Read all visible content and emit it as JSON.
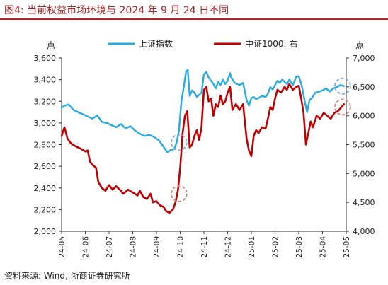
{
  "figure": {
    "title": "图4:   当前权益市场环境与 2024 年 9 月 24 日不同",
    "source": "资料来源:  Wind,  浙商证券研究所"
  },
  "chart_data": {
    "type": "line",
    "left_unit": "点",
    "right_unit": "点",
    "x_tick_labels": [
      "24-05",
      "24-06",
      "24-07",
      "24-08",
      "24-09",
      "24-10",
      "24-11",
      "24-12",
      "25-01",
      "25-02",
      "25-03",
      "25-04",
      "25-05"
    ],
    "y_left": {
      "min": 2000,
      "max": 3600,
      "ticks": [
        2000,
        2200,
        2400,
        2600,
        2800,
        3000,
        3200,
        3400,
        3600
      ],
      "tick_labels": [
        "2,000",
        "2,200",
        "2,400",
        "2,600",
        "2,800",
        "3,000",
        "3,200",
        "3,400",
        "3,600"
      ]
    },
    "y_right": {
      "min": 4000,
      "max": 7000,
      "ticks": [
        4000,
        4500,
        5000,
        5500,
        6000,
        6500,
        7000
      ],
      "tick_labels": [
        "4,000",
        "4,500",
        "5,000",
        "5,500",
        "6,000",
        "6,500",
        "7,000"
      ]
    },
    "legend_position": "top",
    "series": [
      {
        "name": "上证指数",
        "axis": "left",
        "color": "#29abe2",
        "points": [
          [
            0.0,
            3140
          ],
          [
            0.12,
            3160
          ],
          [
            0.3,
            3170
          ],
          [
            0.5,
            3120
          ],
          [
            0.7,
            3100
          ],
          [
            0.9,
            3080
          ],
          [
            1.1,
            3060
          ],
          [
            1.3,
            3040
          ],
          [
            1.5,
            3070
          ],
          [
            1.7,
            3010
          ],
          [
            1.9,
            3000
          ],
          [
            2.1,
            2980
          ],
          [
            2.3,
            2960
          ],
          [
            2.5,
            2990
          ],
          [
            2.7,
            2950
          ],
          [
            2.9,
            2970
          ],
          [
            3.1,
            2930
          ],
          [
            3.3,
            2900
          ],
          [
            3.5,
            2880
          ],
          [
            3.7,
            2890
          ],
          [
            3.9,
            2870
          ],
          [
            4.1,
            2840
          ],
          [
            4.3,
            2780
          ],
          [
            4.45,
            2730
          ],
          [
            4.6,
            2750
          ],
          [
            4.75,
            2760
          ],
          [
            4.85,
            2820
          ],
          [
            4.95,
            2930
          ],
          [
            5.05,
            3200
          ],
          [
            5.15,
            3330
          ],
          [
            5.25,
            3480
          ],
          [
            5.32,
            3490
          ],
          [
            5.4,
            3250
          ],
          [
            5.5,
            3300
          ],
          [
            5.6,
            3280
          ],
          [
            5.7,
            3240
          ],
          [
            5.8,
            3260
          ],
          [
            5.9,
            3280
          ],
          [
            6.0,
            3450
          ],
          [
            6.1,
            3470
          ],
          [
            6.2,
            3420
          ],
          [
            6.3,
            3390
          ],
          [
            6.4,
            3360
          ],
          [
            6.5,
            3320
          ],
          [
            6.6,
            3380
          ],
          [
            6.7,
            3350
          ],
          [
            6.8,
            3400
          ],
          [
            6.9,
            3360
          ],
          [
            7.0,
            3390
          ],
          [
            7.1,
            3460
          ],
          [
            7.15,
            3420
          ],
          [
            7.3,
            3370
          ],
          [
            7.5,
            3350
          ],
          [
            7.65,
            3370
          ],
          [
            7.8,
            3210
          ],
          [
            7.9,
            3160
          ],
          [
            8.0,
            3230
          ],
          [
            8.1,
            3240
          ],
          [
            8.2,
            3220
          ],
          [
            8.3,
            3230
          ],
          [
            8.45,
            3250
          ],
          [
            8.6,
            3240
          ],
          [
            8.7,
            3270
          ],
          [
            8.8,
            3330
          ],
          [
            8.9,
            3310
          ],
          [
            9.0,
            3350
          ],
          [
            9.1,
            3390
          ],
          [
            9.2,
            3370
          ],
          [
            9.3,
            3400
          ],
          [
            9.4,
            3380
          ],
          [
            9.5,
            3360
          ],
          [
            9.6,
            3400
          ],
          [
            9.75,
            3350
          ],
          [
            9.9,
            3430
          ],
          [
            10.0,
            3430
          ],
          [
            10.1,
            3360
          ],
          [
            10.15,
            3320
          ],
          [
            10.25,
            3200
          ],
          [
            10.35,
            3100
          ],
          [
            10.45,
            3210
          ],
          [
            10.55,
            3230
          ],
          [
            10.7,
            3280
          ],
          [
            10.85,
            3290
          ],
          [
            11.0,
            3300
          ],
          [
            11.15,
            3320
          ],
          [
            11.3,
            3290
          ],
          [
            11.45,
            3320
          ],
          [
            11.6,
            3330
          ],
          [
            11.75,
            3350
          ],
          [
            11.9,
            3340
          ]
        ]
      },
      {
        "name": "中证1000:  右",
        "axis": "right",
        "color": "#c00000",
        "points": [
          [
            0.0,
            5650
          ],
          [
            0.12,
            5800
          ],
          [
            0.25,
            5600
          ],
          [
            0.4,
            5520
          ],
          [
            0.55,
            5480
          ],
          [
            0.7,
            5450
          ],
          [
            0.85,
            5420
          ],
          [
            1.0,
            5380
          ],
          [
            1.1,
            5400
          ],
          [
            1.2,
            5200
          ],
          [
            1.3,
            5150
          ],
          [
            1.45,
            5100
          ],
          [
            1.55,
            4850
          ],
          [
            1.7,
            4750
          ],
          [
            1.85,
            4700
          ],
          [
            2.0,
            4800
          ],
          [
            2.15,
            4720
          ],
          [
            2.3,
            4780
          ],
          [
            2.5,
            4700
          ],
          [
            2.6,
            4650
          ],
          [
            2.8,
            4720
          ],
          [
            3.0,
            4670
          ],
          [
            3.2,
            4620
          ],
          [
            3.3,
            4700
          ],
          [
            3.45,
            4590
          ],
          [
            3.6,
            4560
          ],
          [
            3.75,
            4650
          ],
          [
            3.85,
            4500
          ],
          [
            4.0,
            4520
          ],
          [
            4.15,
            4450
          ],
          [
            4.3,
            4420
          ],
          [
            4.4,
            4350
          ],
          [
            4.55,
            4320
          ],
          [
            4.7,
            4380
          ],
          [
            4.8,
            4500
          ],
          [
            4.9,
            4700
          ],
          [
            5.0,
            5100
          ],
          [
            5.1,
            5700
          ],
          [
            5.2,
            6000
          ],
          [
            5.3,
            6080
          ],
          [
            5.4,
            5450
          ],
          [
            5.5,
            5500
          ],
          [
            5.6,
            5650
          ],
          [
            5.7,
            5750
          ],
          [
            5.8,
            5580
          ],
          [
            5.9,
            5800
          ],
          [
            6.0,
            6450
          ],
          [
            6.1,
            6500
          ],
          [
            6.2,
            6250
          ],
          [
            6.3,
            6300
          ],
          [
            6.4,
            6000
          ],
          [
            6.5,
            6200
          ],
          [
            6.6,
            6150
          ],
          [
            6.7,
            6350
          ],
          [
            6.8,
            6200
          ],
          [
            6.9,
            6250
          ],
          [
            7.0,
            6400
          ],
          [
            7.1,
            6500
          ],
          [
            7.2,
            6100
          ],
          [
            7.35,
            6200
          ],
          [
            7.5,
            6100
          ],
          [
            7.65,
            6200
          ],
          [
            7.8,
            5600
          ],
          [
            7.9,
            5400
          ],
          [
            8.0,
            5300
          ],
          [
            8.1,
            5650
          ],
          [
            8.2,
            5750
          ],
          [
            8.3,
            5700
          ],
          [
            8.45,
            5800
          ],
          [
            8.6,
            5780
          ],
          [
            8.7,
            5950
          ],
          [
            8.8,
            6150
          ],
          [
            8.9,
            6100
          ],
          [
            9.0,
            6300
          ],
          [
            9.1,
            6450
          ],
          [
            9.25,
            6400
          ],
          [
            9.4,
            6500
          ],
          [
            9.5,
            6450
          ],
          [
            9.6,
            6550
          ],
          [
            9.75,
            6450
          ],
          [
            9.9,
            6500
          ],
          [
            10.0,
            6520
          ],
          [
            10.1,
            6300
          ],
          [
            10.2,
            6050
          ],
          [
            10.3,
            5500
          ],
          [
            10.4,
            5700
          ],
          [
            10.5,
            5900
          ],
          [
            10.6,
            5800
          ],
          [
            10.75,
            6000
          ],
          [
            10.9,
            5950
          ],
          [
            11.05,
            6050
          ],
          [
            11.2,
            6000
          ],
          [
            11.35,
            5950
          ],
          [
            11.5,
            6050
          ],
          [
            11.65,
            6080
          ],
          [
            11.8,
            6150
          ],
          [
            11.9,
            6200
          ]
        ]
      }
    ],
    "annotations": [
      {
        "series": "上证指数",
        "x": 4.95,
        "y": 2820,
        "color": "#7ea6d8"
      },
      {
        "series": "中证1000:  右",
        "x": 4.95,
        "y": 4650,
        "color": "#d98080"
      },
      {
        "series": "上证指数",
        "x": 11.85,
        "y": 3340,
        "color": "#7ea6d8"
      },
      {
        "series": "中证1000:  右",
        "x": 11.85,
        "y": 6150,
        "color": "#d98080"
      }
    ]
  }
}
